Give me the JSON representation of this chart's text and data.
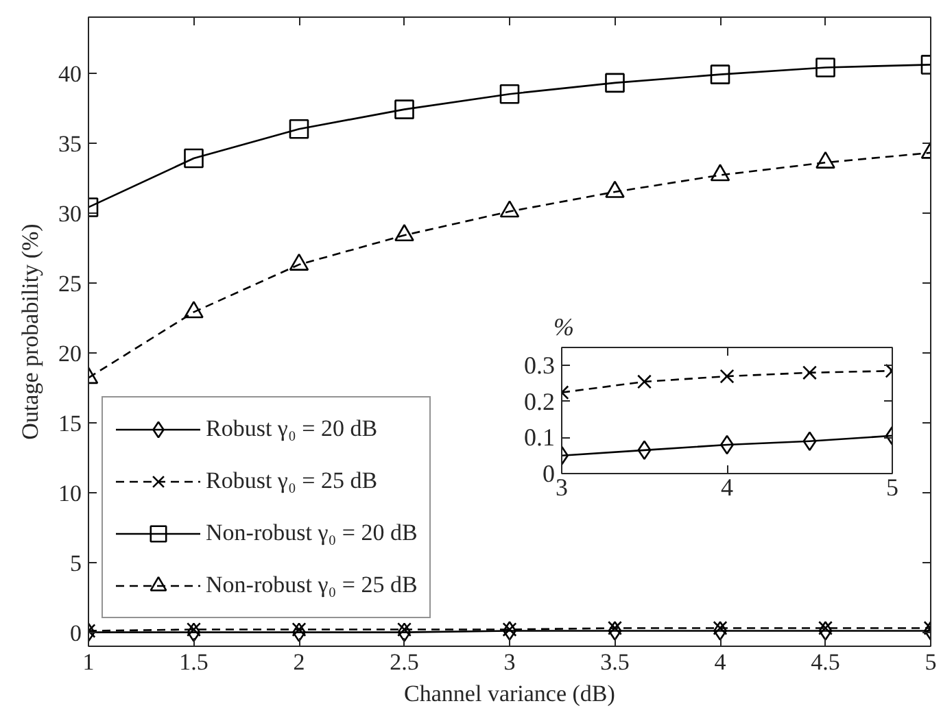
{
  "chart_data": [
    {
      "type": "line",
      "xlabel": "Channel variance (dB)",
      "ylabel": "Outage probability (%)",
      "x": [
        1,
        1.5,
        2,
        2.5,
        3,
        3.5,
        4,
        4.5,
        5
      ],
      "series": [
        {
          "name": "Robust γ₀ = 20 dB",
          "color": "#000000",
          "marker": "diamond",
          "line_style": "solid",
          "values": [
            0.0,
            0.0,
            0.0,
            0.0,
            0.1,
            0.1,
            0.1,
            0.1,
            0.1
          ]
        },
        {
          "name": "Robust γ₀ = 25 dB",
          "color": "#000000",
          "marker": "cross",
          "line_style": "dashed",
          "values": [
            0.1,
            0.2,
            0.2,
            0.2,
            0.2,
            0.3,
            0.3,
            0.3,
            0.3
          ]
        },
        {
          "name": "Non-robust γ₀ = 20 dB",
          "color": "#000000",
          "marker": "square",
          "line_style": "solid",
          "values": [
            30.4,
            33.9,
            36.0,
            37.4,
            38.5,
            39.3,
            39.9,
            40.4,
            40.6
          ]
        },
        {
          "name": "Non-robust γ₀ = 25 dB",
          "color": "#000000",
          "marker": "triangle",
          "line_style": "dashed",
          "values": [
            18.2,
            22.9,
            26.3,
            28.4,
            30.1,
            31.5,
            32.7,
            33.6,
            34.3
          ]
        }
      ],
      "xlim": [
        1,
        5
      ],
      "ylim": [
        -1,
        44
      ],
      "xticks": [
        1,
        1.5,
        2,
        2.5,
        3,
        3.5,
        4,
        4.5,
        5
      ],
      "yticks": [
        0,
        5,
        10,
        15,
        20,
        25,
        30,
        35,
        40
      ],
      "grid": false,
      "legend": "bottom left"
    },
    {
      "type": "line",
      "ylabel": "%",
      "x": [
        3,
        3.5,
        4,
        4.5,
        5
      ],
      "series": [
        {
          "color": "#000000",
          "marker": "diamond",
          "line_style": "solid",
          "values": [
            0.05,
            0.065,
            0.08,
            0.09,
            0.105
          ]
        },
        {
          "color": "#000000",
          "marker": "cross",
          "line_style": "dashed",
          "values": [
            0.225,
            0.255,
            0.27,
            0.28,
            0.285
          ]
        }
      ],
      "xlim": [
        3,
        5
      ],
      "ylim": [
        0,
        0.35
      ],
      "xticks": [
        3,
        4,
        5
      ],
      "yticks": [
        0,
        0.1,
        0.2,
        0.3
      ],
      "grid": false
    }
  ]
}
